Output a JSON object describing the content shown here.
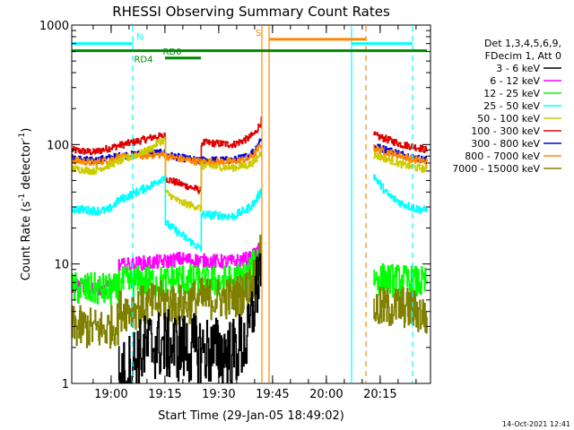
{
  "chart_data": {
    "type": "line",
    "title": "RHESSI Observing Summary Count Rates",
    "xlabel": "Start Time (29-Jan-05 18:49:02)",
    "ylabel_parts": [
      "Count Rate (s",
      "-1",
      " detector",
      "-1",
      ")"
    ],
    "yscale": "log",
    "ylim": [
      1,
      1000
    ],
    "xlim_minutes_from_start": [
      0,
      100
    ],
    "y_ticks": [
      {
        "value": 1,
        "label": "1"
      },
      {
        "value": 10,
        "label": "10"
      },
      {
        "value": 100,
        "label": "100"
      },
      {
        "value": 1000,
        "label": "1000"
      }
    ],
    "x_ticks": [
      {
        "t": 10.97,
        "label": "19:00"
      },
      {
        "t": 25.97,
        "label": "19:15"
      },
      {
        "t": 40.97,
        "label": "19:30"
      },
      {
        "t": 55.97,
        "label": "19:45"
      },
      {
        "t": 70.97,
        "label": "20:00"
      },
      {
        "t": 85.97,
        "label": "20:15"
      }
    ],
    "legend": {
      "placement": "right",
      "header": [
        "Det 1,3,4,5,6,9,",
        "FDecim 1, Att 0"
      ],
      "entries": [
        {
          "label": "3 - 6 keV",
          "color": "#000000"
        },
        {
          "label": "6 - 12 keV",
          "color": "#ff00ff"
        },
        {
          "label": "12 - 25 keV",
          "color": "#00ff00"
        },
        {
          "label": "25 - 50 keV",
          "color": "#00ffff"
        },
        {
          "label": "50 - 100 keV",
          "color": "#cccc00"
        },
        {
          "label": "100 - 300 keV",
          "color": "#dd0000"
        },
        {
          "label": "300 - 800 keV",
          "color": "#0000dd"
        },
        {
          "label": "800 - 7000 keV",
          "color": "#ff8800"
        },
        {
          "label": "7000 - 15000 keV",
          "color": "#808000"
        }
      ]
    },
    "series": [
      {
        "color": "#dd0000",
        "noise": 0.03,
        "points": [
          [
            0,
            90
          ],
          [
            6,
            86
          ],
          [
            13,
            98
          ],
          [
            18,
            106
          ],
          [
            23,
            116
          ],
          [
            26,
            118
          ],
          [
            26.1,
            52
          ],
          [
            30,
            47
          ],
          [
            35,
            42
          ],
          [
            36,
            41
          ],
          [
            36.1,
            104
          ],
          [
            45,
            100
          ],
          [
            49,
            112
          ],
          [
            51,
            124
          ],
          [
            52.5,
            150
          ],
          [
            53,
            165
          ],
          [
            53.1,
            null
          ],
          [
            84,
            null
          ],
          [
            84.1,
            120
          ],
          [
            88,
            110
          ],
          [
            92,
            100
          ],
          [
            96,
            95
          ],
          [
            99,
            90
          ]
        ]
      },
      {
        "color": "#0000dd",
        "noise": 0.03,
        "points": [
          [
            0,
            77
          ],
          [
            6,
            73
          ],
          [
            13,
            80
          ],
          [
            18,
            83
          ],
          [
            23,
            85
          ],
          [
            26,
            85
          ],
          [
            26.1,
            82
          ],
          [
            30,
            78
          ],
          [
            35,
            73
          ],
          [
            36,
            72
          ],
          [
            36.1,
            74
          ],
          [
            45,
            74
          ],
          [
            49,
            80
          ],
          [
            51,
            90
          ],
          [
            52.5,
            110
          ],
          [
            53,
            118
          ],
          [
            53.1,
            null
          ],
          [
            84,
            null
          ],
          [
            84.1,
            97
          ],
          [
            88,
            90
          ],
          [
            92,
            83
          ],
          [
            96,
            77
          ],
          [
            99,
            74
          ]
        ]
      },
      {
        "color": "#ff8800",
        "noise": 0.03,
        "points": [
          [
            0,
            74
          ],
          [
            6,
            70
          ],
          [
            13,
            78
          ],
          [
            18,
            80
          ],
          [
            23,
            82
          ],
          [
            26,
            82
          ],
          [
            26.1,
            80
          ],
          [
            30,
            76
          ],
          [
            35,
            72
          ],
          [
            36,
            71
          ],
          [
            36.1,
            72
          ],
          [
            45,
            72
          ],
          [
            49,
            76
          ],
          [
            51,
            84
          ],
          [
            52.5,
            98
          ],
          [
            53,
            102
          ],
          [
            53.1,
            null
          ],
          [
            84,
            null
          ],
          [
            84.1,
            93
          ],
          [
            88,
            86
          ],
          [
            92,
            80
          ],
          [
            96,
            74
          ],
          [
            99,
            72
          ]
        ]
      },
      {
        "color": "#cccc00",
        "noise": 0.03,
        "points": [
          [
            0,
            63
          ],
          [
            6,
            60
          ],
          [
            13,
            72
          ],
          [
            18,
            82
          ],
          [
            22,
            92
          ],
          [
            24,
            104
          ],
          [
            26,
            110
          ],
          [
            26.1,
            40
          ],
          [
            30,
            33
          ],
          [
            35,
            30
          ],
          [
            36,
            29
          ],
          [
            36.1,
            66
          ],
          [
            45,
            64
          ],
          [
            49,
            67
          ],
          [
            51,
            72
          ],
          [
            52.5,
            85
          ],
          [
            53,
            92
          ],
          [
            53.1,
            null
          ],
          [
            84,
            null
          ],
          [
            84.1,
            82
          ],
          [
            88,
            75
          ],
          [
            92,
            68
          ],
          [
            96,
            64
          ],
          [
            99,
            62
          ]
        ]
      },
      {
        "color": "#00ffff",
        "noise": 0.035,
        "points": [
          [
            0,
            29
          ],
          [
            6,
            28
          ],
          [
            10,
            28
          ],
          [
            13,
            34
          ],
          [
            18,
            40
          ],
          [
            23,
            47
          ],
          [
            26,
            55
          ],
          [
            26.1,
            22
          ],
          [
            30,
            18
          ],
          [
            35,
            14
          ],
          [
            36,
            13
          ],
          [
            36.1,
            26
          ],
          [
            45,
            25
          ],
          [
            49,
            29
          ],
          [
            51,
            33
          ],
          [
            53,
            42
          ],
          [
            53.1,
            null
          ],
          [
            84,
            null
          ],
          [
            84.1,
            55
          ],
          [
            88,
            38
          ],
          [
            92,
            32
          ],
          [
            96,
            29
          ],
          [
            99,
            28
          ]
        ]
      },
      {
        "color": "#ff00ff",
        "noise": 0.06,
        "points": [
          [
            0,
            6.5
          ],
          [
            9,
            6.3
          ],
          [
            13,
            6.6
          ],
          [
            13.1,
            9.6
          ],
          [
            20,
            10.2
          ],
          [
            26,
            10.5
          ],
          [
            30,
            11
          ],
          [
            36,
            10.6
          ],
          [
            45,
            10.4
          ],
          [
            50,
            11.2
          ],
          [
            52,
            13
          ],
          [
            53,
            17
          ],
          [
            53.1,
            null
          ],
          [
            84,
            null
          ],
          [
            84.1,
            null
          ],
          [
            99,
            null
          ]
        ]
      },
      {
        "color": "#00ff00",
        "noise": 0.14,
        "points": [
          [
            0,
            6.2
          ],
          [
            9,
            6.1
          ],
          [
            13,
            6.0
          ],
          [
            13.1,
            6.8
          ],
          [
            20,
            7.2
          ],
          [
            26,
            7.0
          ],
          [
            30,
            7.5
          ],
          [
            36,
            7.0
          ],
          [
            45,
            7.2
          ],
          [
            49,
            8
          ],
          [
            51,
            10
          ],
          [
            53,
            14
          ],
          [
            53.1,
            null
          ],
          [
            84,
            null
          ],
          [
            84.1,
            7.5
          ],
          [
            92,
            7.2
          ],
          [
            96,
            7.0
          ],
          [
            99,
            6.8
          ]
        ]
      },
      {
        "color": "#808000",
        "noise": 0.18,
        "points": [
          [
            0,
            3.0
          ],
          [
            9,
            2.8
          ],
          [
            13,
            3.2
          ],
          [
            13.1,
            4.1
          ],
          [
            20,
            4.4
          ],
          [
            26,
            4.9
          ],
          [
            30,
            4.5
          ],
          [
            36,
            5.1
          ],
          [
            45,
            5.2
          ],
          [
            49,
            6
          ],
          [
            51,
            8
          ],
          [
            53,
            13
          ],
          [
            53.1,
            null
          ],
          [
            84,
            null
          ],
          [
            84.1,
            4.2
          ],
          [
            92,
            4.4
          ],
          [
            96,
            4.0
          ],
          [
            99,
            3.6
          ]
        ]
      },
      {
        "color": "#000000",
        "noise": 0.3,
        "points": [
          [
            13,
            1.1
          ],
          [
            15,
            1.2
          ],
          [
            18,
            1.7
          ],
          [
            22,
            2.1
          ],
          [
            26,
            2.1
          ],
          [
            30,
            2.0
          ],
          [
            36,
            1.9
          ],
          [
            45,
            1.8
          ],
          [
            49,
            2.3
          ],
          [
            51,
            5
          ],
          [
            53,
            12
          ],
          [
            53.1,
            null
          ]
        ]
      }
    ],
    "state_bars": [
      {
        "label": "N",
        "color": "#00ffff",
        "y": 700,
        "segments": [
          [
            0,
            17
          ],
          [
            78,
            95
          ]
        ],
        "label_t": 19
      },
      {
        "label": "S",
        "color": "#ff8800",
        "y": 760,
        "segments": [
          [
            55,
            82
          ]
        ],
        "label_t": 52
      }
    ],
    "attenuator_bars": [
      {
        "label": "RD4",
        "color": "#008800",
        "y": 610,
        "segments": [
          [
            0,
            99
          ]
        ],
        "label_t": 20,
        "label_pos": "below"
      },
      {
        "label": "RD0",
        "color": "#008800",
        "y": 530,
        "segments": [
          [
            26,
            36
          ]
        ],
        "label_t": 28,
        "label_pos": "above"
      }
    ],
    "vlines": [
      {
        "t": 17,
        "color": "#00ffff",
        "dash": true
      },
      {
        "t": 53,
        "color": "#ff8800",
        "dash": false
      },
      {
        "t": 55,
        "color": "#ff8800",
        "dash": false
      },
      {
        "t": 78,
        "color": "#00ffff",
        "dash": false
      },
      {
        "t": 82,
        "color": "#ff8800",
        "dash": true
      },
      {
        "t": 95,
        "color": "#00ffff",
        "dash": true
      }
    ],
    "footer_date": "14-Oct-2021 12:41"
  }
}
